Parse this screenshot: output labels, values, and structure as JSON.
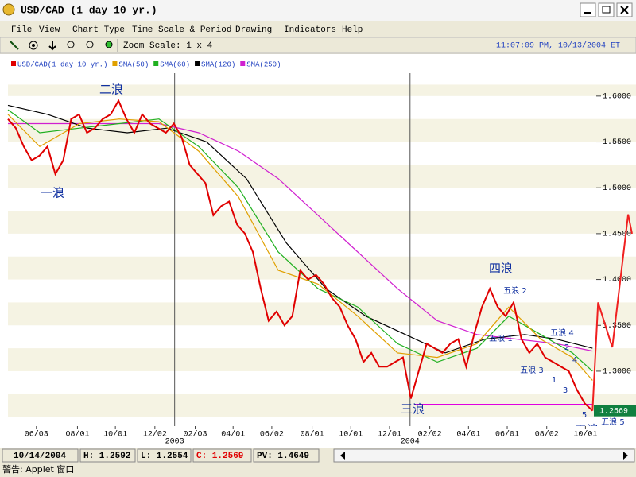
{
  "window": {
    "title": "USD/CAD (1 day  10 yr.)"
  },
  "menu": [
    "File",
    "View",
    "Chart Type",
    "Time Scale & Period",
    "Drawing",
    "Indicators",
    "Help"
  ],
  "toolbar": {
    "zoom": "Zoom Scale: 1 x 4",
    "time": "11:07:09 PM, 10/13/2004 ET"
  },
  "chart_data": {
    "type": "line",
    "ylim": [
      1.241,
      1.625
    ],
    "yticks": [
      {
        "value": 1.3,
        "label": "1.3000"
      },
      {
        "value": 1.35,
        "label": "1.3500"
      },
      {
        "value": 1.4,
        "label": "1.4000"
      },
      {
        "value": 1.45,
        "label": "1.4500"
      },
      {
        "value": 1.5,
        "label": "1.5000"
      },
      {
        "value": 1.55,
        "label": "1.5500"
      },
      {
        "value": 1.6,
        "label": "1.6000"
      }
    ],
    "xlim": [
      0,
      79.5
    ],
    "xticks": [
      {
        "value": 3.6,
        "label": "06/03"
      },
      {
        "value": 8.8,
        "label": "08/01"
      },
      {
        "value": 13.6,
        "label": "10/01"
      },
      {
        "value": 18.6,
        "label": "12/02"
      },
      {
        "value": 23.7,
        "label": "02/03"
      },
      {
        "value": 28.5,
        "label": "04/01"
      },
      {
        "value": 33.4,
        "label": "06/02"
      },
      {
        "value": 38.5,
        "label": "08/01"
      },
      {
        "value": 43.4,
        "label": "10/01"
      },
      {
        "value": 48.3,
        "label": "12/01"
      },
      {
        "value": 53.4,
        "label": "02/02"
      },
      {
        "value": 58.3,
        "label": "04/01"
      },
      {
        "value": 63.2,
        "label": "06/01"
      },
      {
        "value": 68.2,
        "label": "08/02"
      },
      {
        "value": 73.1,
        "label": "10/01"
      }
    ],
    "year_ticks": [
      {
        "value": 21.1,
        "label": "2003"
      },
      {
        "value": 50.9,
        "label": "2004"
      }
    ],
    "bands": true,
    "series": [
      {
        "name": "USD/CAD(1 day  10 yr.)",
        "color": "#e00000",
        "values": [
          1.575,
          1.565,
          1.545,
          1.53,
          1.535,
          1.545,
          1.515,
          1.53,
          1.575,
          1.58,
          1.56,
          1.565,
          1.575,
          1.58,
          1.595,
          1.575,
          1.56,
          1.58,
          1.57,
          1.565,
          1.56,
          1.57,
          1.555,
          1.525,
          1.515,
          1.505,
          1.47,
          1.48,
          1.485,
          1.46,
          1.45,
          1.43,
          1.39,
          1.355,
          1.365,
          1.35,
          1.36,
          1.41,
          1.4,
          1.405,
          1.395,
          1.38,
          1.37,
          1.35,
          1.335,
          1.31,
          1.32,
          1.305,
          1.305,
          1.31,
          1.315,
          1.27,
          1.3,
          1.33,
          1.325,
          1.32,
          1.33,
          1.335,
          1.305,
          1.34,
          1.37,
          1.39,
          1.37,
          1.36,
          1.375,
          1.335,
          1.32,
          1.33,
          1.315,
          1.31,
          1.305,
          1.3,
          1.28,
          1.265,
          1.2569
        ]
      },
      {
        "name": "SMA(50)",
        "color": "#e0a000",
        "x": [
          0,
          4.03,
          9.06,
          14.09,
          19.12,
          24.15,
          29.18,
          34.22,
          39.25,
          44.28,
          49.31,
          54.34,
          59.37,
          63.4,
          67.43,
          71.45,
          74
        ],
        "values": [
          1.58,
          1.545,
          1.57,
          1.575,
          1.572,
          1.54,
          1.49,
          1.41,
          1.395,
          1.36,
          1.32,
          1.315,
          1.33,
          1.37,
          1.335,
          1.315,
          1.29
        ]
      },
      {
        "name": "SMA(60)",
        "color": "#20b020",
        "x": [
          0,
          4.03,
          9.06,
          14.09,
          19.12,
          24.15,
          29.18,
          34.22,
          39.25,
          44.28,
          49.31,
          54.34,
          59.37,
          63.4,
          67.43,
          71.45,
          74
        ],
        "values": [
          1.585,
          1.56,
          1.565,
          1.57,
          1.575,
          1.545,
          1.5,
          1.43,
          1.39,
          1.37,
          1.33,
          1.31,
          1.325,
          1.36,
          1.34,
          1.32,
          1.3
        ]
      },
      {
        "name": "SMA(120)",
        "color": "#000000",
        "x": [
          0,
          5.03,
          10.06,
          15.1,
          20.13,
          25.16,
          30.19,
          35.22,
          40.25,
          45.29,
          50.32,
          55.35,
          60.38,
          65.41,
          69.44,
          74
        ],
        "values": [
          1.59,
          1.58,
          1.565,
          1.56,
          1.565,
          1.55,
          1.51,
          1.44,
          1.39,
          1.36,
          1.34,
          1.32,
          1.335,
          1.34,
          1.335,
          1.325
        ]
      },
      {
        "name": "SMA(250)",
        "color": "#d020d0",
        "x": [
          0,
          9.06,
          19.12,
          24.15,
          29.18,
          34.22,
          39.25,
          44.28,
          49.31,
          54.34,
          59.37,
          64.41,
          69.44,
          74
        ],
        "values": [
          1.57,
          1.57,
          1.57,
          1.56,
          1.54,
          1.51,
          1.47,
          1.43,
          1.39,
          1.355,
          1.34,
          1.335,
          1.33,
          1.322
        ]
      }
    ],
    "projection": {
      "color": "#f02020",
      "x": [
        74,
        74.7,
        76.5,
        78.5,
        79
      ],
      "values": [
        1.2569,
        1.375,
        1.326,
        1.471,
        1.45
      ]
    },
    "hline": {
      "value": 1.2635,
      "from": 51.4,
      "to": 74,
      "color": "#e000e0"
    },
    "last_value": {
      "value": 1.2569,
      "label": "1.2569"
    },
    "annotations": [
      "二浪",
      "一浪",
      "四浪",
      "三浪",
      "五浪",
      "五浪 2",
      "五浪 1",
      "五浪 3",
      "五浪 4",
      "1",
      "2",
      "3",
      "4",
      "5",
      "五浪 5"
    ]
  },
  "status": {
    "date": "10/14/2004",
    "high": "H: 1.2592",
    "low": "L: 1.2554",
    "close": "C: 1.2569",
    "pv": "PV: 1.4649"
  },
  "footer": "警告: Applet 窗口"
}
